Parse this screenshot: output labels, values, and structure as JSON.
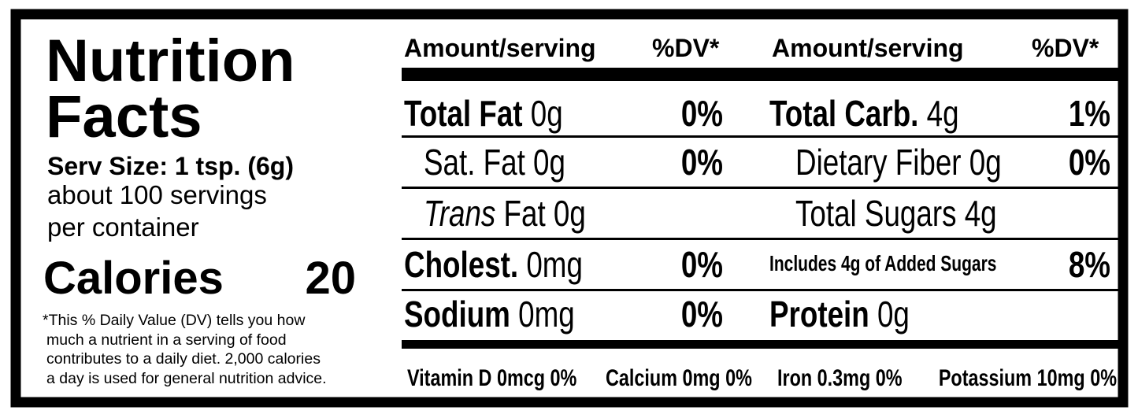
{
  "title_lines": [
    "Nutrition",
    "Facts"
  ],
  "serving_size": "Serv Size: 1 tsp. (6g)",
  "servings": [
    "about 100 servings",
    "per container"
  ],
  "calories": {
    "label": "Calories",
    "value": "20"
  },
  "footnote": [
    "*This % Daily Value (DV) tells you how",
    "much a nutrient in a serving of food",
    "contributes to a daily diet. 2,000 calories",
    "a day is used for general nutrition advice."
  ],
  "header": [
    "Amount/serving",
    "%DV*",
    "Amount/serving",
    "%DV*"
  ],
  "left_rows": [
    {
      "name": "Total Fat",
      "amount": "0g",
      "dv": "0%"
    },
    {
      "name": "Sat. Fat",
      "amount": "0g",
      "dv": "0%"
    },
    {
      "name_italic": "Trans",
      "name": "Fat",
      "amount": "0g"
    },
    {
      "name": "Cholest.",
      "amount": "0mg",
      "dv": "0%"
    },
    {
      "name": "Sodium",
      "amount": "0mg",
      "dv": "0%"
    }
  ],
  "right_rows": [
    {
      "name": "Total Carb.",
      "amount": "4g",
      "dv": "1%"
    },
    {
      "name": "Dietary Fiber",
      "amount": "0g",
      "dv": "0%"
    },
    {
      "name": "Total Sugars",
      "amount": "4g"
    },
    {
      "name": "Includes 4g of Added Sugars",
      "dv": "8%"
    },
    {
      "name": "Protein",
      "amount": "0g"
    }
  ],
  "vitamins": [
    "Vitamin D 0mcg 0%",
    "Calcium 0mg 0%",
    "Iron 0.3mg 0%",
    "Potassium 10mg 0%"
  ]
}
